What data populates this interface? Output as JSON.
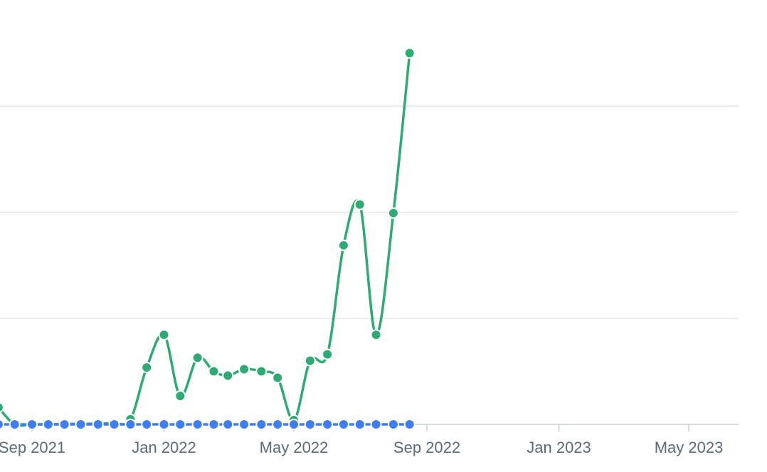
{
  "chart_data": {
    "type": "line",
    "title": "",
    "xlabel": "",
    "ylabel": "",
    "x_tick_labels": [
      {
        "date": "2021-09-01",
        "label": "Sep 2021"
      },
      {
        "date": "2022-01-01",
        "label": "Jan 2022"
      },
      {
        "date": "2022-05-01",
        "label": "May 2022"
      },
      {
        "date": "2022-09-01",
        "label": "Sep 2022"
      },
      {
        "date": "2023-01-01",
        "label": "Jan 2023"
      },
      {
        "date": "2023-05-01",
        "label": "May 2023"
      }
    ],
    "y_axis": {
      "tick_labels_visible": false,
      "ylim": [
        0,
        100
      ],
      "gridlines": [
        0,
        25,
        50,
        75
      ]
    },
    "grid": true,
    "legend": "none",
    "series": [
      {
        "color": "#2eaa73",
        "points": [
          {
            "x": "2021-08-01",
            "y": 4.0
          },
          {
            "x": "2021-08-16",
            "y": 0.0
          },
          {
            "x": "2021-09-01",
            "y": 0.0
          },
          {
            "x": "2021-09-16",
            "y": 0.0
          },
          {
            "x": "2021-10-01",
            "y": 0.1
          },
          {
            "x": "2021-10-16",
            "y": 0.1
          },
          {
            "x": "2021-11-01",
            "y": 0.2
          },
          {
            "x": "2021-11-16",
            "y": 0.3
          },
          {
            "x": "2021-12-01",
            "y": 1.2
          },
          {
            "x": "2021-12-16",
            "y": 13.4
          },
          {
            "x": "2022-01-01",
            "y": 21.1
          },
          {
            "x": "2022-01-16",
            "y": 6.7
          },
          {
            "x": "2022-02-01",
            "y": 15.7
          },
          {
            "x": "2022-02-16",
            "y": 12.5
          },
          {
            "x": "2022-03-01",
            "y": 11.5
          },
          {
            "x": "2022-03-16",
            "y": 13.0
          },
          {
            "x": "2022-04-01",
            "y": 12.5
          },
          {
            "x": "2022-04-16",
            "y": 11.0
          },
          {
            "x": "2022-05-01",
            "y": 1.0
          },
          {
            "x": "2022-05-16",
            "y": 15.0
          },
          {
            "x": "2022-06-01",
            "y": 16.5
          },
          {
            "x": "2022-06-16",
            "y": 42.2
          },
          {
            "x": "2022-07-01",
            "y": 51.8
          },
          {
            "x": "2022-07-16",
            "y": 21.1
          },
          {
            "x": "2022-08-01",
            "y": 49.8
          },
          {
            "x": "2022-08-16",
            "y": 87.5
          }
        ]
      },
      {
        "color": "#3f7ef0",
        "points": [
          {
            "x": "2021-08-01",
            "y": 0
          },
          {
            "x": "2021-08-16",
            "y": 0
          },
          {
            "x": "2021-09-01",
            "y": 0
          },
          {
            "x": "2021-09-16",
            "y": 0
          },
          {
            "x": "2021-10-01",
            "y": 0
          },
          {
            "x": "2021-10-16",
            "y": 0
          },
          {
            "x": "2021-11-01",
            "y": 0
          },
          {
            "x": "2021-11-16",
            "y": 0
          },
          {
            "x": "2021-12-01",
            "y": 0
          },
          {
            "x": "2021-12-16",
            "y": 0
          },
          {
            "x": "2022-01-01",
            "y": 0
          },
          {
            "x": "2022-01-16",
            "y": 0
          },
          {
            "x": "2022-02-01",
            "y": 0
          },
          {
            "x": "2022-02-16",
            "y": 0
          },
          {
            "x": "2022-03-01",
            "y": 0
          },
          {
            "x": "2022-03-16",
            "y": 0
          },
          {
            "x": "2022-04-01",
            "y": 0
          },
          {
            "x": "2022-04-16",
            "y": 0
          },
          {
            "x": "2022-05-01",
            "y": 0
          },
          {
            "x": "2022-05-16",
            "y": 0
          },
          {
            "x": "2022-06-01",
            "y": 0
          },
          {
            "x": "2022-06-16",
            "y": 0
          },
          {
            "x": "2022-07-01",
            "y": 0
          },
          {
            "x": "2022-07-16",
            "y": 0
          },
          {
            "x": "2022-08-01",
            "y": 0
          },
          {
            "x": "2022-08-16",
            "y": 0
          }
        ]
      }
    ]
  }
}
